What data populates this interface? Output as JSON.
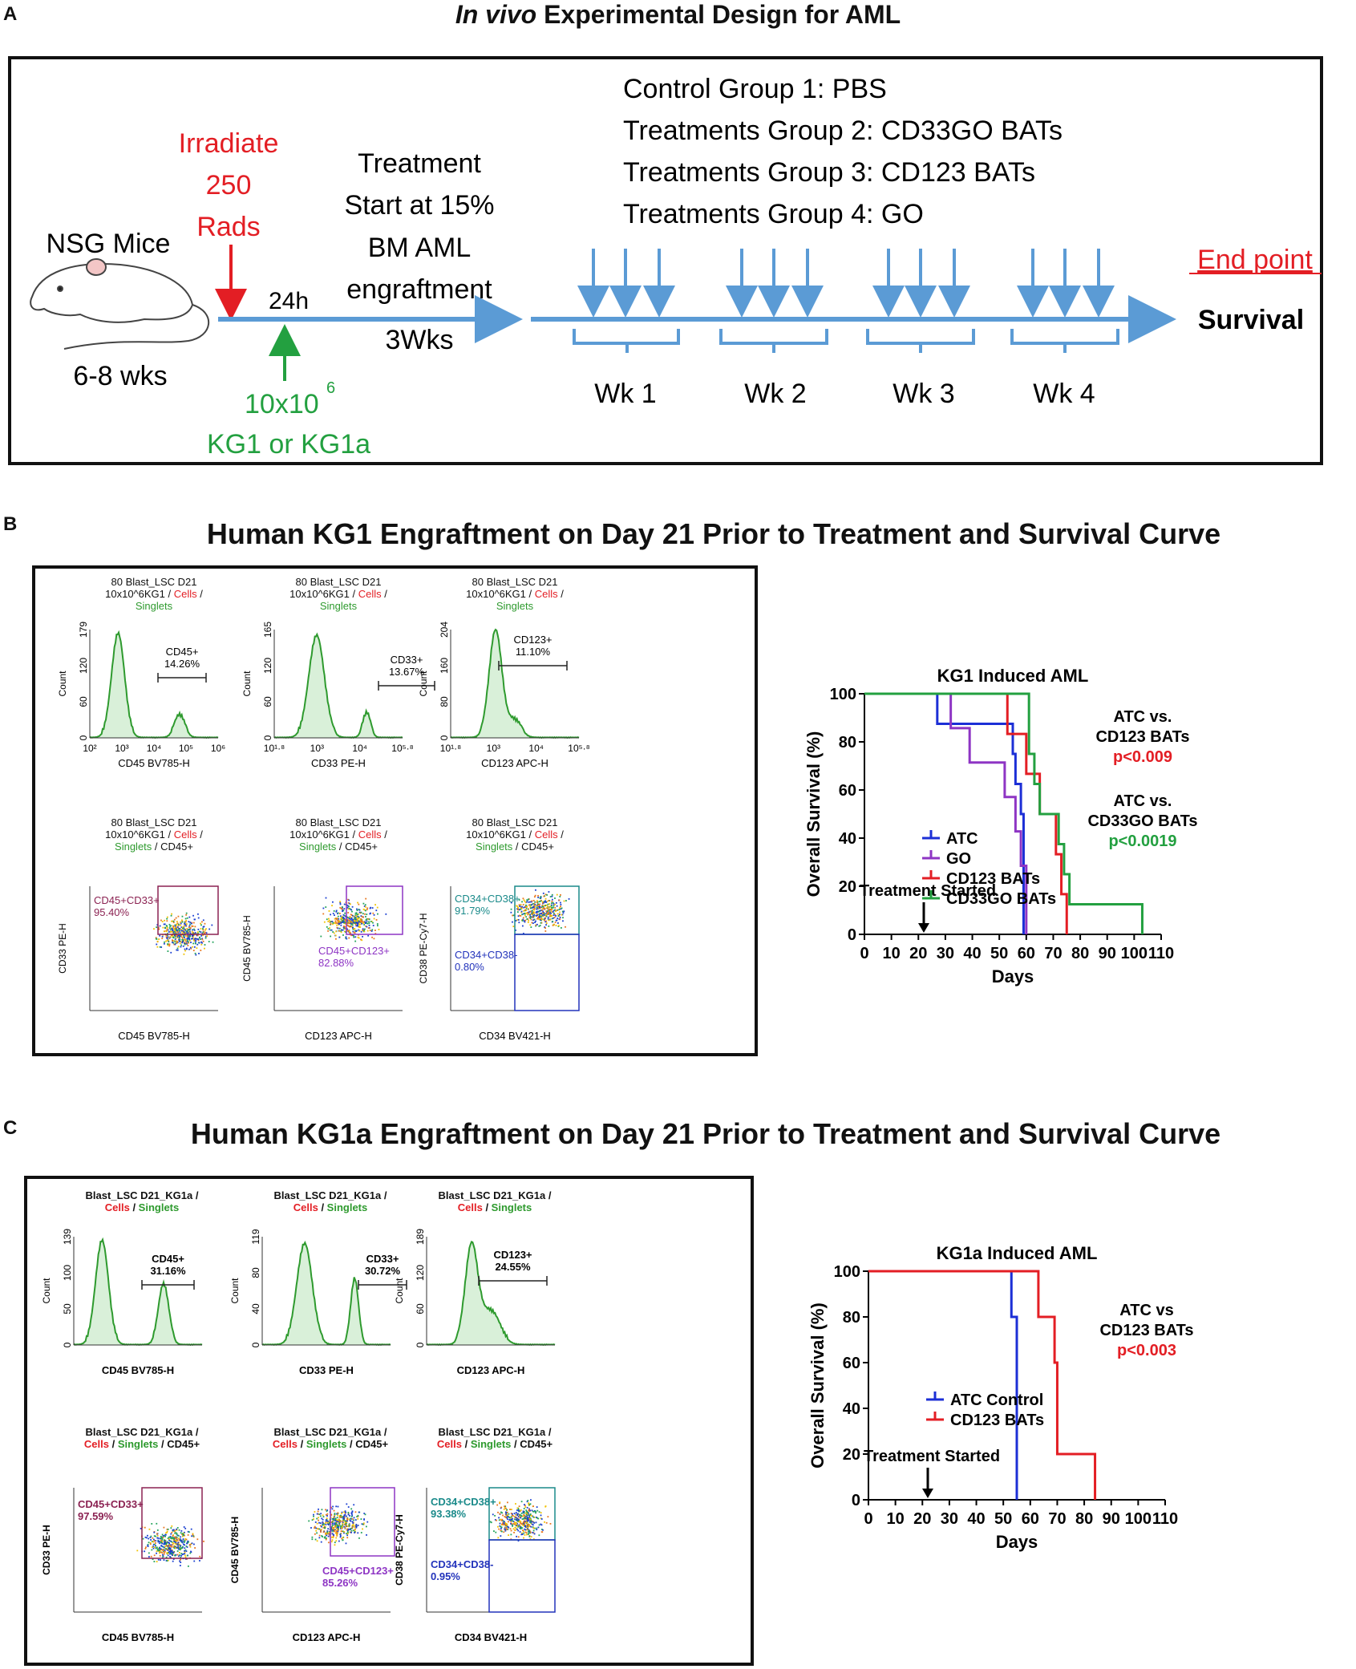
{
  "figure": {
    "panel_a": {
      "letter": "A",
      "title_italic": "In vivo",
      "title_rest": " Experimental Design for AML",
      "mouse_label": "NSG Mice",
      "mouse_age": "6-8 wks",
      "irradiate": [
        "Irradiate",
        "250",
        "Rads"
      ],
      "time_24h": "24h",
      "cells_dose": "10x10",
      "cells_exp": "6",
      "cells_line": "KG1 or KG1a",
      "treatment_start": [
        "Treatment",
        "Start at 15%",
        "BM AML",
        "engraftment",
        "3Wks"
      ],
      "groups": [
        "Control Group 1: PBS",
        "Treatments Group 2: CD33GO BATs",
        "Treatments Group 3: CD123 BATs",
        "Treatments Group 4: GO"
      ],
      "weeks": [
        "Wk 1",
        "Wk 2",
        "Wk 3",
        "Wk 4"
      ],
      "end_point": "End point",
      "survival": "Survival",
      "colors": {
        "red": "#e31e24",
        "green": "#23a040",
        "arrow": "#5b9bd5"
      }
    },
    "panel_b": {
      "letter": "B",
      "title": "Human KG1 Engraftment on Day  21 Prior to Treatment and Survival Curve",
      "flow": {
        "header": "80 Blast_LSC D21",
        "header2": "10x10^6KG1 / ",
        "cells": "Cells",
        "singlets": "Singlets",
        "singlets_cd45": "Singlets / CD45+",
        "hist": [
          {
            "gate_name": "CD45+",
            "gate_pct": "14.26%",
            "xlabel": "CD45 BV785-H",
            "yticks": [
              "0",
              "60",
              "120",
              "179"
            ],
            "xticks": [
              "10²",
              "10³",
              "10⁴",
              "10⁵",
              "10⁶"
            ]
          },
          {
            "gate_name": "CD33+",
            "gate_pct": "13.67%",
            "xlabel": "CD33 PE-H",
            "yticks": [
              "0",
              "60",
              "120",
              "165"
            ],
            "xticks": [
              "10¹·⁸",
              "10³",
              "10⁴",
              "10⁵·⁸"
            ]
          },
          {
            "gate_name": "CD123+",
            "gate_pct": "11.10%",
            "xlabel": "CD123 APC-H",
            "yticks": [
              "0",
              "80",
              "160",
              "204"
            ],
            "xticks": [
              "10¹·⁸",
              "10³",
              "10⁴",
              "10⁵·⁸"
            ]
          }
        ],
        "ylabel_count": "Count",
        "dots": [
          {
            "gate": "CD45+CD33+",
            "pct": "95.40%",
            "xlabel": "CD45 BV785-H",
            "ylabel": "CD33 PE-H"
          },
          {
            "gate": "CD45+CD123+",
            "pct": "82.88%",
            "xlabel": "CD123 APC-H",
            "ylabel": "CD45 BV785-H"
          },
          {
            "gate": "CD34+CD38+",
            "pct": "91.79%",
            "gate2": "CD34+CD38-",
            "pct2": "0.80%",
            "xlabel": "CD34 BV421-H",
            "ylabel": "CD38 PE-Cy7-H"
          }
        ]
      }
    },
    "panel_c": {
      "letter": "C",
      "title": "Human KG1a Engraftment on Day  21 Prior to Treatment and Survival Curve",
      "flow": {
        "header": "Blast_LSC D21_KG1a /",
        "cells": "Cells",
        "singlets": "Singlets",
        "hist": [
          {
            "gate_name": "CD45+",
            "gate_pct": "31.16%",
            "xlabel": "CD45 BV785-H",
            "yticks": [
              "0",
              "50",
              "100",
              "139"
            ]
          },
          {
            "gate_name": "CD33+",
            "gate_pct": "30.72%",
            "xlabel": "CD33 PE-H",
            "yticks": [
              "0",
              "40",
              "80",
              "119"
            ]
          },
          {
            "gate_name": "CD123+",
            "gate_pct": "24.55%",
            "xlabel": "CD123 APC-H",
            "yticks": [
              "0",
              "60",
              "120",
              "189"
            ]
          }
        ],
        "dots": [
          {
            "gate": "CD45+CD33+",
            "pct": "97.59%",
            "xlabel": "CD45 BV785-H",
            "ylabel": "CD33 PE-H"
          },
          {
            "gate": "CD45+CD123+",
            "pct": "85.26%",
            "xlabel": "CD123 APC-H",
            "ylabel": "CD45 BV785-H"
          },
          {
            "gate": "CD34+CD38+",
            "pct": "93.38%",
            "gate2": "CD34+CD38-",
            "pct2": "0.95%",
            "xlabel": "CD34 BV421-H",
            "ylabel": "CD38 PE-Cy7-H"
          }
        ]
      }
    }
  },
  "chart_data": [
    {
      "type": "line",
      "step": true,
      "title": "KG1 Induced AML",
      "xlabel": "Days",
      "ylabel": "Overall Survival (%)",
      "xlim": [
        0,
        110
      ],
      "ylim": [
        0,
        100
      ],
      "xticks": [
        0,
        10,
        20,
        30,
        40,
        50,
        60,
        70,
        80,
        90,
        100,
        110
      ],
      "yticks": [
        0,
        20,
        40,
        60,
        80,
        100
      ],
      "annotation_arrow_day": 22,
      "annotation": "Treatment Started",
      "stats": [
        {
          "line1": "ATC vs.",
          "line2": "CD123 BATs",
          "p": "p<0.009",
          "color": "#e31e24"
        },
        {
          "line1": "ATC vs.",
          "line2": "CD33GO BATs",
          "p": "p<0.0019",
          "color": "#23a040"
        }
      ],
      "series": [
        {
          "name": "ATC",
          "color": "#1c2fd6",
          "x": [
            0,
            27,
            55,
            56,
            58,
            59
          ],
          "y": [
            100,
            87.5,
            75,
            62.5,
            50,
            0
          ]
        },
        {
          "name": "GO",
          "color": "#8e35c4",
          "x": [
            0,
            32,
            39,
            52,
            56,
            58,
            60
          ],
          "y": [
            100,
            85.7,
            71.4,
            57.1,
            42.8,
            28.5,
            0
          ]
        },
        {
          "name": "CD123 BATs",
          "color": "#e31e24",
          "x": [
            0,
            53,
            60,
            65,
            71,
            73,
            75
          ],
          "y": [
            100,
            83.3,
            66.7,
            50,
            33.3,
            16.7,
            0
          ]
        },
        {
          "name": "CD33GO BATs",
          "color": "#23a040",
          "x": [
            0,
            61,
            63,
            65,
            72,
            74,
            76,
            103
          ],
          "y": [
            100,
            75,
            62.5,
            50,
            37.5,
            25,
            12.5,
            0
          ]
        }
      ]
    },
    {
      "type": "line",
      "step": true,
      "title": "KG1a Induced AML",
      "xlabel": "Days",
      "ylabel": "Overall Survival (%)",
      "xlim": [
        0,
        110
      ],
      "ylim": [
        0,
        100
      ],
      "xticks": [
        0,
        10,
        20,
        30,
        40,
        50,
        60,
        70,
        80,
        90,
        100,
        110
      ],
      "yticks": [
        0,
        20,
        40,
        60,
        80,
        100
      ],
      "annotation_arrow_day": 22,
      "annotation": "Treatment Started",
      "stats": [
        {
          "line1": "ATC vs",
          "line2": "CD123 BATs",
          "p": "p<0.003",
          "color": "#e31e24"
        }
      ],
      "series": [
        {
          "name": "ATC Control",
          "color": "#1c2fd6",
          "x": [
            0,
            53,
            55
          ],
          "y": [
            100,
            80,
            0
          ]
        },
        {
          "name": "CD123 BATs",
          "color": "#e31e24",
          "x": [
            0,
            63,
            69,
            70,
            84
          ],
          "y": [
            100,
            80,
            60,
            20,
            0
          ]
        }
      ]
    }
  ]
}
